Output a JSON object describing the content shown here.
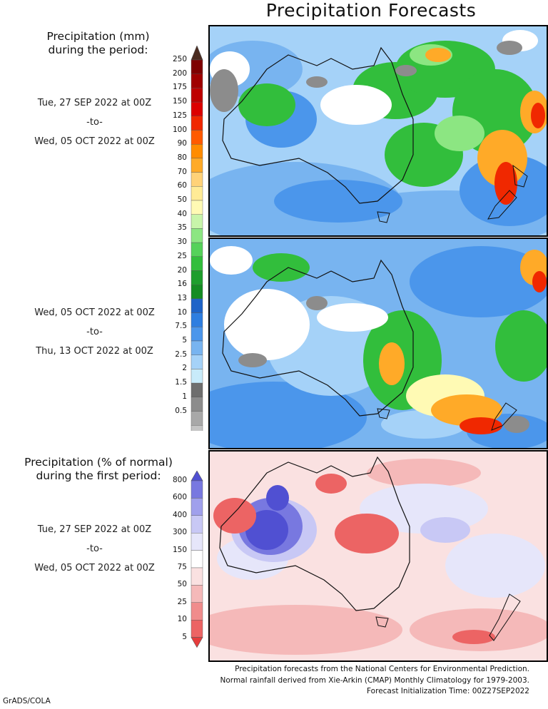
{
  "title": "Precipitation Forecasts",
  "legend1": {
    "header_lines": [
      "Precipitation (mm)",
      "during the period:"
    ],
    "ticks": [
      "250",
      "200",
      "175",
      "150",
      "125",
      "100",
      "90",
      "80",
      "70",
      "60",
      "50",
      "40",
      "35",
      "30",
      "25",
      "20",
      "16",
      "13",
      "10",
      "7.5",
      "5",
      "2.5",
      "2",
      "1.5",
      "1",
      "0.5"
    ],
    "colors": [
      "#7f0000",
      "#a00000",
      "#be0000",
      "#dc0000",
      "#f02800",
      "#ff5a00",
      "#ff8c00",
      "#ffaa28",
      "#ffd278",
      "#ffeb96",
      "#fffab4",
      "#c8f5aa",
      "#8ce682",
      "#55d25a",
      "#32be3c",
      "#1e9e2d",
      "#148c23",
      "#1e64c8",
      "#2e7ee0",
      "#4b96eb",
      "#78b4f0",
      "#a5d2f8",
      "#c8ebfa",
      "#6e6e6e",
      "#8c8c8c",
      "#a8a8a8",
      "#c4c4c4",
      "#dedede"
    ],
    "top_cap_color": "#4a2b20"
  },
  "period1": {
    "start": "Tue, 27 SEP 2022 at 00Z",
    "sep": "-to-",
    "end": "Wed, 05 OCT 2022 at 00Z"
  },
  "period2": {
    "start": "Wed, 05 OCT 2022 at 00Z",
    "sep": "-to-",
    "end": "Thu, 13 OCT 2022 at 00Z"
  },
  "legend2": {
    "header_lines": [
      "Precipitation (% of normal)",
      "during the first period:"
    ],
    "ticks": [
      "800",
      "600",
      "400",
      "300",
      "150",
      "75",
      "50",
      "25",
      "10",
      "5"
    ],
    "colors": [
      "#5050d2",
      "#7878e0",
      "#a0a0ec",
      "#c8c8f5",
      "#e6e6fa",
      "#ffffff",
      "#fae1e1",
      "#f5b9b9",
      "#f08c8c",
      "#ec6464",
      "#e63c3c"
    ]
  },
  "period3": {
    "start": "Tue, 27 SEP 2022 at 00Z",
    "sep": "-to-",
    "end": "Wed, 05 OCT 2022 at 00Z"
  },
  "footer": [
    "Precipitation forecasts from the National Centers for Environmental Prediction.",
    "Normal rainfall derived from Xie-Arkin (CMAP) Monthly Climatology for 1979-2003.",
    "Forecast Initialization Time: 00Z27SEP2022"
  ],
  "credit": "GrADS/COLA"
}
